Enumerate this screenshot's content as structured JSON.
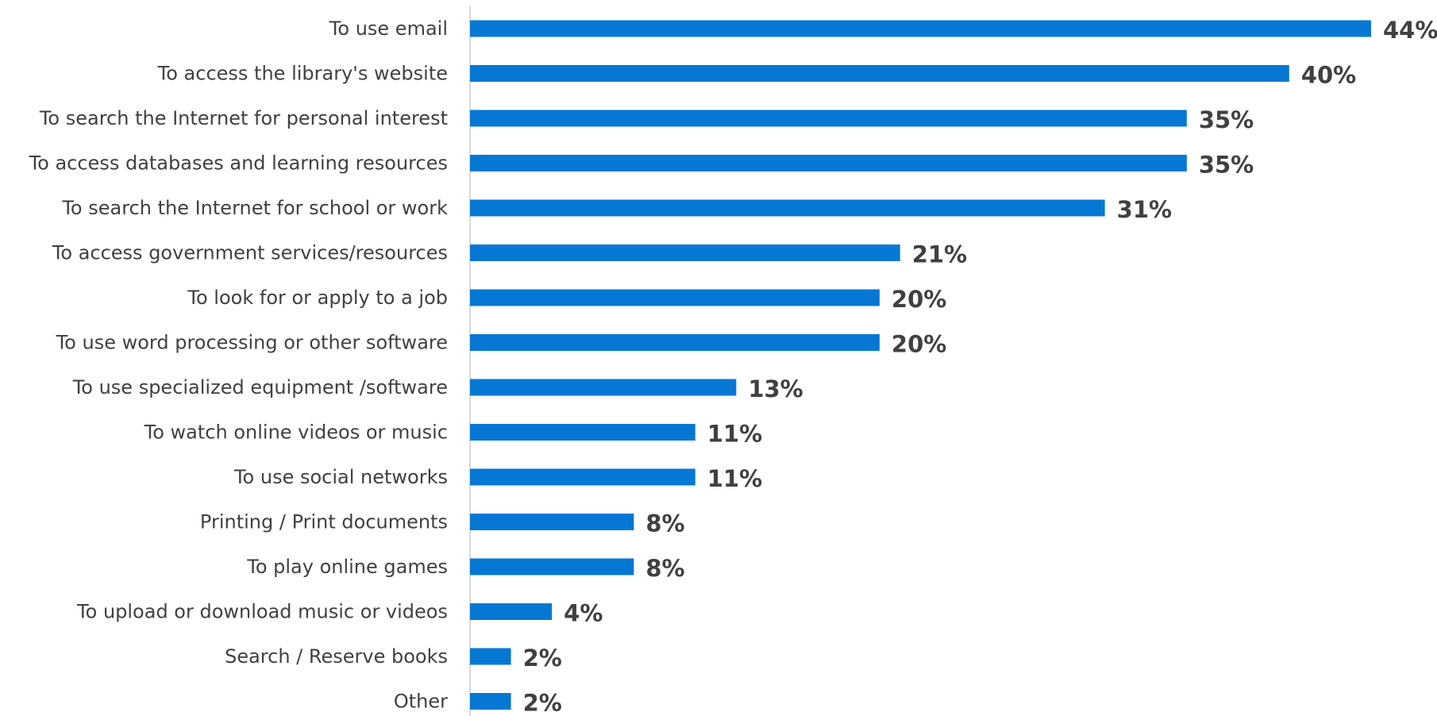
{
  "colors": {
    "bar": "#0678D4",
    "axis": "#D9D9D9",
    "label": "#404040"
  },
  "chart_data": {
    "type": "bar",
    "orientation": "horizontal",
    "title": "",
    "xlabel": "",
    "ylabel": "",
    "xlim": [
      0,
      44
    ],
    "grid": false,
    "legend": "none",
    "value_suffix": "%",
    "categories": [
      "To use email",
      "To access the library's website",
      "To search the Internet for personal interest",
      "To access databases and learning resources",
      "To search the Internet for school or work",
      "To access government services/resources ",
      "To look for or apply to a job",
      "To use word processing or other software",
      "To use specialized equipment /software",
      "To watch online videos or music",
      "To use social networks",
      "Printing / Print documents",
      "To play online games",
      "To upload or download music or videos",
      "Search / Reserve books",
      "Other"
    ],
    "values": [
      44,
      40,
      35,
      35,
      31,
      21,
      20,
      20,
      13,
      11,
      11,
      8,
      8,
      4,
      2,
      2
    ],
    "value_labels": [
      "44%",
      "40%",
      "35%",
      "35%",
      "31%",
      "21%",
      "20%",
      "20%",
      "13%",
      "11%",
      "11%",
      "8%",
      "8%",
      "4%",
      "2%",
      "2%"
    ]
  }
}
